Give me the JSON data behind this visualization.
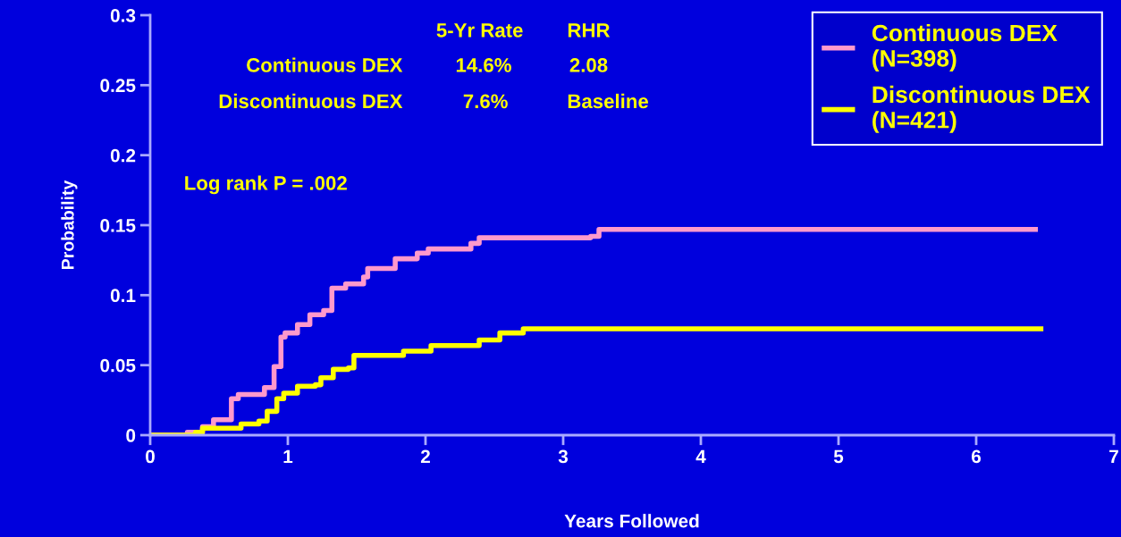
{
  "chart_data": {
    "type": "step",
    "xlabel": "Years Followed",
    "ylabel": "Probability",
    "xlim": [
      0,
      7
    ],
    "xticks": [
      0,
      1,
      2,
      3,
      4,
      5,
      6,
      7
    ],
    "ylim": [
      0,
      0.3
    ],
    "yticks": [
      0,
      0.05,
      0.1,
      0.15,
      0.2,
      0.25,
      0.3
    ],
    "grid": false,
    "legend": "top right",
    "marker": "none",
    "line_style": "solid",
    "series": [
      {
        "name": "Continuous DEX\n(N=398)",
        "color": "#ff99cc",
        "x": [
          0,
          0.27,
          0.38,
          0.46,
          0.59,
          0.64,
          0.83,
          0.9,
          0.95,
          0.98,
          1.07,
          1.16,
          1.26,
          1.32,
          1.42,
          1.55,
          1.58,
          1.78,
          1.94,
          2.02,
          2.33,
          2.39,
          3.2,
          3.26,
          6.43
        ],
        "values": [
          0,
          0.002,
          0.006,
          0.011,
          0.026,
          0.029,
          0.034,
          0.049,
          0.07,
          0.073,
          0.079,
          0.086,
          0.089,
          0.105,
          0.108,
          0.113,
          0.119,
          0.126,
          0.13,
          0.133,
          0.137,
          0.141,
          0.142,
          0.147,
          0.147
        ]
      },
      {
        "name": "Discontinuous DEX\n(N=421)",
        "color": "#ffff00",
        "x": [
          0,
          0.33,
          0.38,
          0.66,
          0.79,
          0.85,
          0.92,
          0.97,
          1.07,
          1.2,
          1.24,
          1.33,
          1.44,
          1.48,
          1.84,
          2.04,
          2.39,
          2.54,
          2.71,
          6.47
        ],
        "values": [
          0,
          0.002,
          0.005,
          0.008,
          0.01,
          0.017,
          0.026,
          0.03,
          0.035,
          0.036,
          0.041,
          0.047,
          0.048,
          0.057,
          0.06,
          0.064,
          0.068,
          0.073,
          0.076,
          0.076
        ]
      }
    ],
    "annotations": [
      "5-Yr Rate",
      "RHR",
      "Continuous DEX",
      "14.6%",
      "2.08",
      "Discontinuous DEX",
      "7.6%",
      "Baseline",
      "Log rank P = .002"
    ]
  }
}
